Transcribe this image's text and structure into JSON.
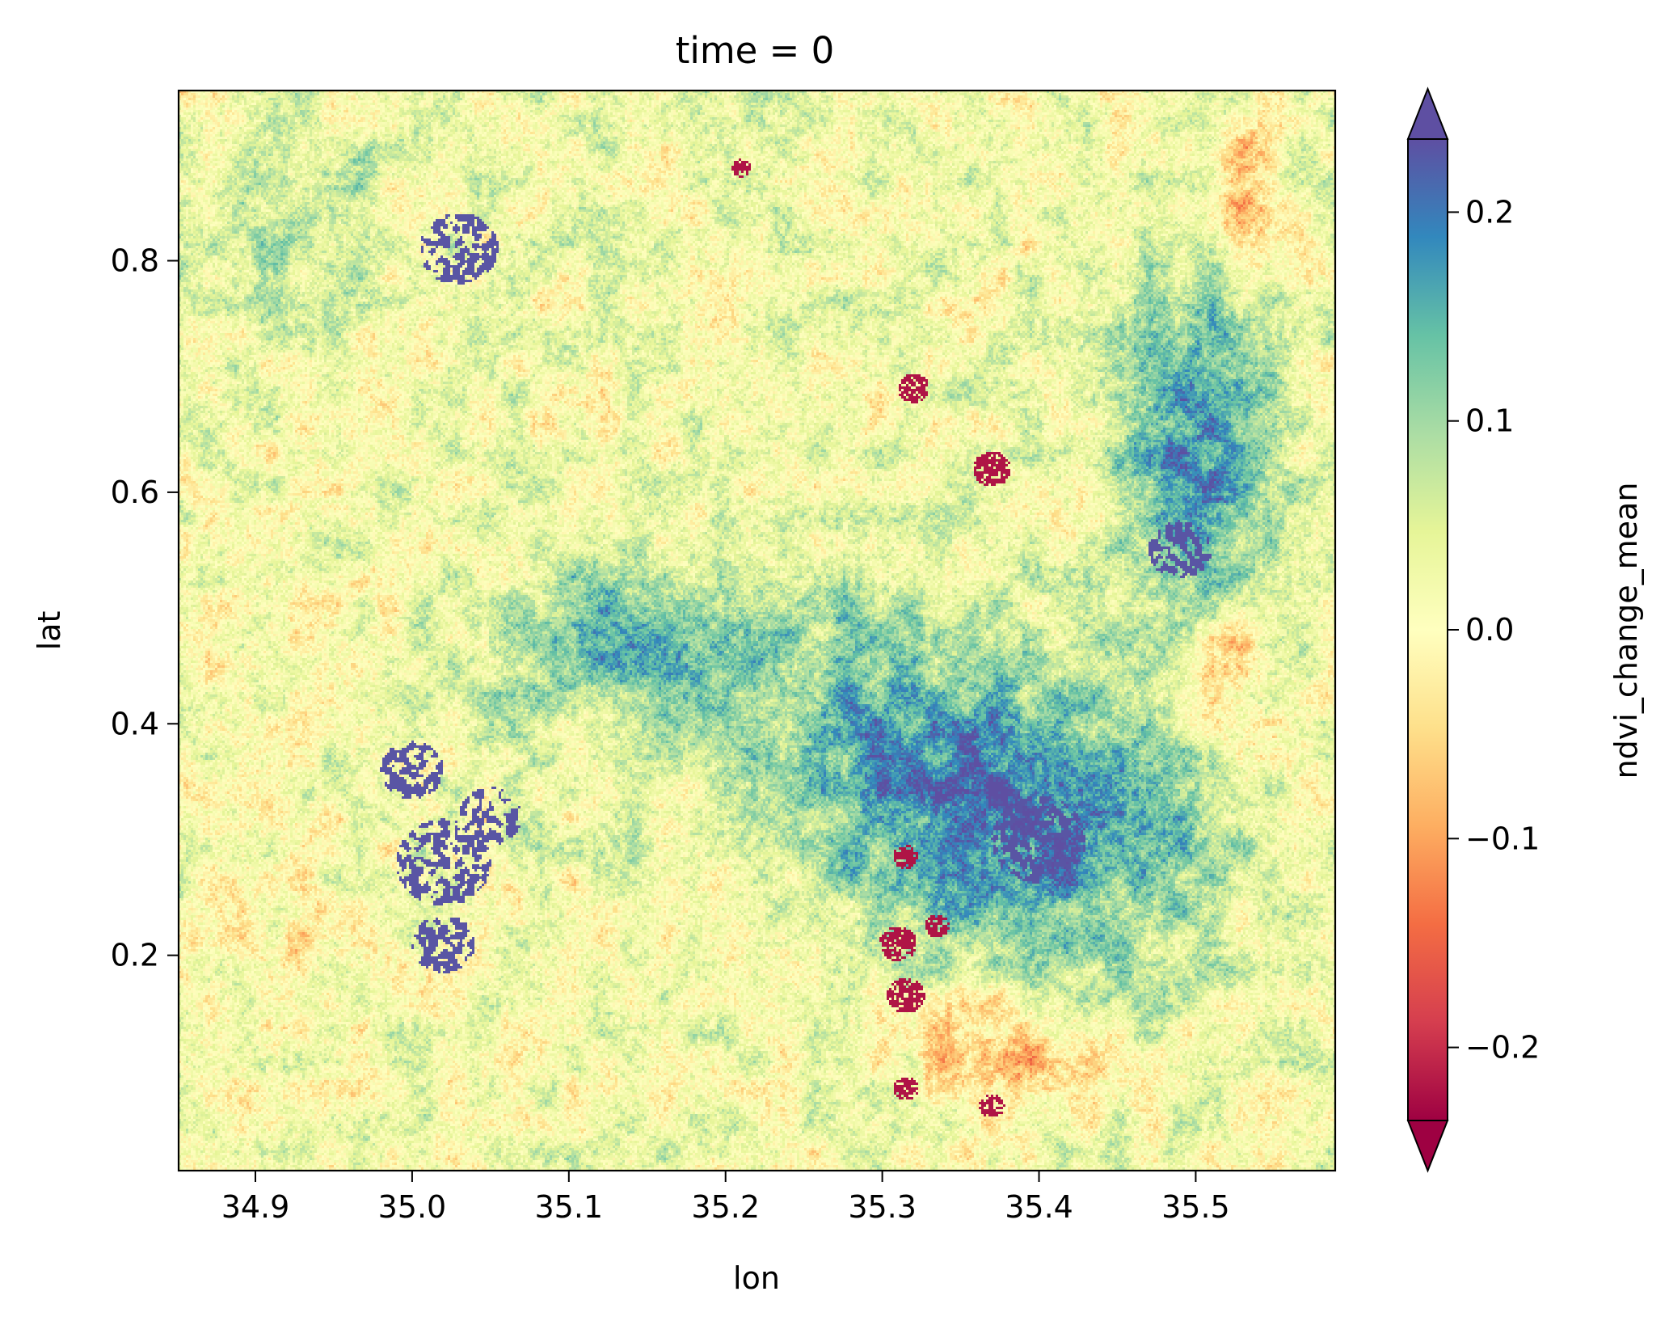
{
  "chart_data": {
    "type": "heatmap",
    "title": "time = 0",
    "xlabel": "lon",
    "ylabel": "lat",
    "colorbar_label": "ndvi_change_mean",
    "colormap": "Spectral",
    "colormap_stops": [
      "#9e0142",
      "#d53e4f",
      "#f46d43",
      "#fdae61",
      "#fee08b",
      "#ffffbf",
      "#e6f598",
      "#abdda4",
      "#66c2a5",
      "#3288bd",
      "#5e4fa2"
    ],
    "color_range": [
      -0.235,
      0.235
    ],
    "colorbar_extend": "both",
    "xlim": [
      34.851,
      35.589
    ],
    "ylim": [
      0.014,
      0.947
    ],
    "x_ticks": [
      34.9,
      35.0,
      35.1,
      35.2,
      35.3,
      35.4,
      35.5
    ],
    "x_tick_labels": [
      "34.9",
      "35.0",
      "35.1",
      "35.2",
      "35.3",
      "35.4",
      "35.5"
    ],
    "y_ticks": [
      0.2,
      0.4,
      0.6,
      0.8
    ],
    "y_tick_labels": [
      "0.2",
      "0.4",
      "0.6",
      "0.8"
    ],
    "colorbar_ticks": [
      -0.2,
      -0.1,
      0.0,
      0.1,
      0.2
    ],
    "colorbar_tick_labels": [
      "−0.2",
      "−0.1",
      "0.0",
      "0.1",
      "0.2"
    ],
    "grid": false,
    "field_description": {
      "background_value": 0.02,
      "features": [
        {
          "lon": 35.4,
          "lat": 0.3,
          "value": 0.17,
          "sx": 0.11,
          "sy": 0.12
        },
        {
          "lon": 35.5,
          "lat": 0.62,
          "value": 0.15,
          "sx": 0.05,
          "sy": 0.18
        },
        {
          "lon": 35.13,
          "lat": 0.47,
          "value": 0.12,
          "sx": 0.09,
          "sy": 0.07
        },
        {
          "lon": 35.29,
          "lat": 0.4,
          "value": 0.1,
          "sx": 0.1,
          "sy": 0.12
        },
        {
          "lon": 34.93,
          "lat": 0.82,
          "value": 0.06,
          "sx": 0.06,
          "sy": 0.08
        },
        {
          "lon": 34.91,
          "lat": 0.25,
          "value": -0.03,
          "sx": 0.06,
          "sy": 0.1
        },
        {
          "lon": 35.52,
          "lat": 0.45,
          "value": -0.12,
          "sx": 0.03,
          "sy": 0.07
        },
        {
          "lon": 35.37,
          "lat": 0.12,
          "value": -0.12,
          "sx": 0.06,
          "sy": 0.05
        },
        {
          "lon": 35.53,
          "lat": 0.85,
          "value": -0.12,
          "sx": 0.02,
          "sy": 0.06
        },
        {
          "lon": 34.96,
          "lat": 0.51,
          "value": -0.04,
          "sx": 0.05,
          "sy": 0.02
        }
      ],
      "high_patches": [
        {
          "lon": 35.03,
          "lat": 0.81,
          "r": 0.025
        },
        {
          "lon": 35.0,
          "lat": 0.36,
          "r": 0.02
        },
        {
          "lon": 35.02,
          "lat": 0.28,
          "r": 0.03
        },
        {
          "lon": 35.02,
          "lat": 0.21,
          "r": 0.02
        },
        {
          "lon": 35.05,
          "lat": 0.32,
          "r": 0.02
        },
        {
          "lon": 35.4,
          "lat": 0.3,
          "r": 0.03
        },
        {
          "lon": 35.49,
          "lat": 0.55,
          "r": 0.02
        }
      ],
      "low_patches": [
        {
          "lon": 35.31,
          "lat": 0.21,
          "r": 0.012
        },
        {
          "lon": 35.315,
          "lat": 0.165,
          "r": 0.012
        },
        {
          "lon": 35.315,
          "lat": 0.285,
          "r": 0.008
        },
        {
          "lon": 35.335,
          "lat": 0.225,
          "r": 0.008
        },
        {
          "lon": 35.315,
          "lat": 0.085,
          "r": 0.008
        },
        {
          "lon": 35.37,
          "lat": 0.07,
          "r": 0.008
        },
        {
          "lon": 35.21,
          "lat": 0.88,
          "r": 0.006
        },
        {
          "lon": 35.37,
          "lat": 0.62,
          "r": 0.012
        },
        {
          "lon": 35.32,
          "lat": 0.69,
          "r": 0.01
        }
      ]
    }
  }
}
